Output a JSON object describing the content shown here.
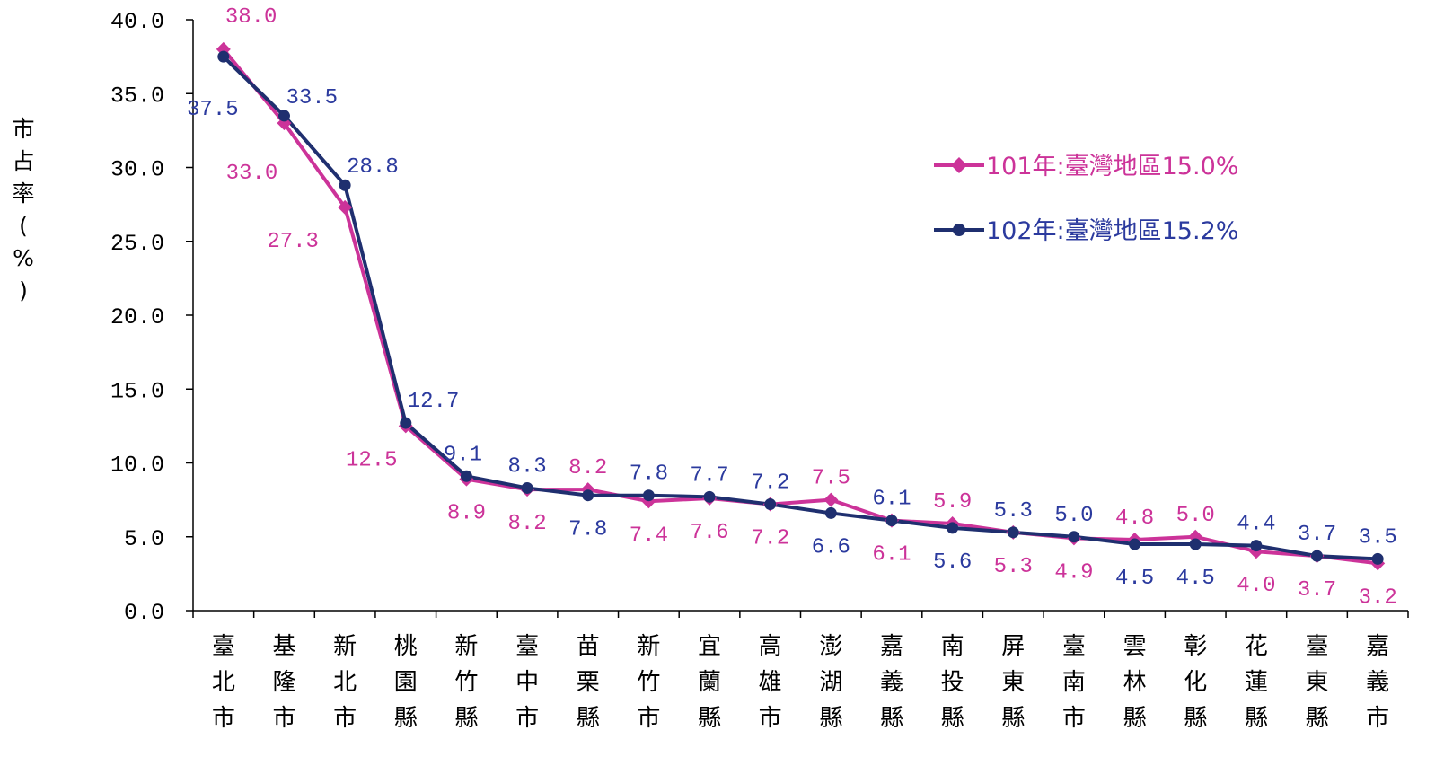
{
  "chart_data": {
    "type": "line",
    "title": "",
    "ylabel": "市占率(%)",
    "xlabel": "",
    "ylim": [
      0,
      40
    ],
    "yticks": [
      "0.0",
      "5.0",
      "10.0",
      "15.0",
      "20.0",
      "25.0",
      "30.0",
      "35.0",
      "40.0"
    ],
    "grid": false,
    "legend_position": "right",
    "categories": [
      "臺北市",
      "基隆市",
      "新北市",
      "桃園縣",
      "新竹縣",
      "臺中市",
      "苗栗縣",
      "新竹市",
      "宜蘭縣",
      "高雄市",
      "澎湖縣",
      "嘉義縣",
      "南投縣",
      "屏東縣",
      "臺南市",
      "雲林縣",
      "彰化縣",
      "花蓮縣",
      "臺東縣",
      "嘉義市"
    ],
    "series": [
      {
        "name": "101年:臺灣地區15.0%",
        "color": "#CC3399",
        "marker": "diamond",
        "values": [
          38.0,
          33.0,
          27.3,
          12.5,
          8.9,
          8.2,
          8.2,
          7.4,
          7.6,
          7.2,
          7.5,
          6.1,
          5.9,
          5.3,
          4.9,
          4.8,
          5.0,
          4.0,
          3.7,
          3.2
        ],
        "labels": [
          "38.0",
          "33.0",
          "27.3",
          "12.5",
          "8.9",
          "8.2",
          "8.2",
          "7.4",
          "7.6",
          "7.2",
          "7.5",
          "6.1",
          "5.9",
          "5.3",
          "4.9",
          "4.8",
          "5.0",
          "4.0",
          "3.7",
          "3.2"
        ]
      },
      {
        "name": "102年:臺灣地區15.2%",
        "color": "#1F2F6F",
        "label_color": "#2B3A9E",
        "marker": "circle",
        "values": [
          37.5,
          33.5,
          28.8,
          12.7,
          9.1,
          8.3,
          7.8,
          7.8,
          7.7,
          7.2,
          6.6,
          6.1,
          5.6,
          5.3,
          5.0,
          4.5,
          4.5,
          4.4,
          3.7,
          3.5
        ],
        "labels": [
          "37.5",
          "33.5",
          "28.8",
          "12.7",
          "9.1",
          "8.3",
          "7.8",
          "7.8",
          "7.7",
          "7.2",
          "6.6",
          "6.1",
          "5.6",
          "5.3",
          "5.0",
          "4.5",
          "4.5",
          "4.4",
          "3.7",
          "3.5"
        ]
      }
    ]
  }
}
